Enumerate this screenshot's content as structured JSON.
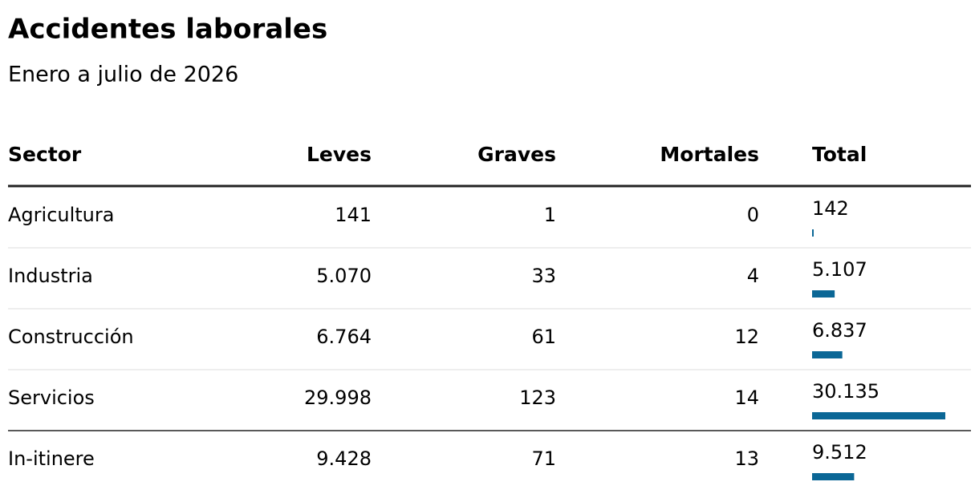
{
  "header": {
    "title": "Accidentes laborales",
    "subtitle": "Enero a julio de 2026"
  },
  "table": {
    "columns": [
      "Sector",
      "Leves",
      "Graves",
      "Mortales",
      "Total"
    ],
    "rows": [
      [
        "Agricultura",
        "141",
        "1",
        "0"
      ],
      [
        "Industria",
        "5.070",
        "33",
        "4"
      ],
      [
        "Construcción",
        "6.764",
        "61",
        "12"
      ],
      [
        "Servicios",
        "29.998",
        "123",
        "14"
      ],
      [
        "In-itinere",
        "9.428",
        "71",
        "13"
      ]
    ],
    "totals": {
      "values": [
        142,
        5107,
        6837,
        30135,
        9512
      ],
      "value_labels": [
        "142",
        "5.107",
        "6.837",
        "30.135",
        "9.512"
      ],
      "color": "#0b6796"
    }
  }
}
